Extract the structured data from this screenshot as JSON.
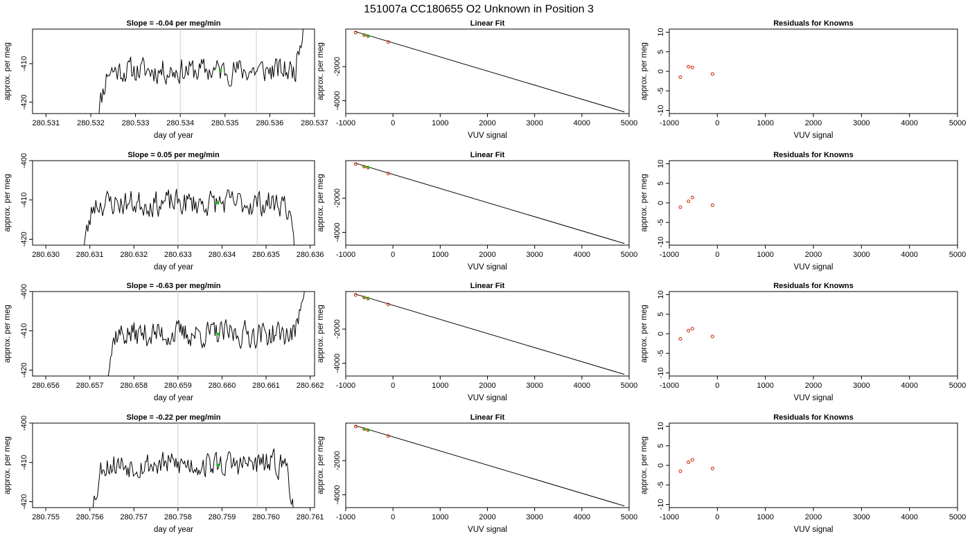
{
  "figure": {
    "title": "151007a     CC180655   O2 Unknown in Position  3",
    "colors": {
      "trace": "#000000",
      "marker": "#00cc00",
      "residual": "#cc2200",
      "vline": "#cccccc"
    }
  },
  "chart_data": [
    {
      "panel": "timeseries",
      "type": "line",
      "title": "Slope =  -0.04  per meg/min",
      "xlabel": "day of year",
      "ylabel": "approx. per meg",
      "xlim": [
        280.5307,
        280.537
      ],
      "ylim": [
        -423,
        -401
      ],
      "xticks": [
        "280.531",
        "280.532",
        "280.533",
        "280.534",
        "280.535",
        "280.536",
        "280.537"
      ],
      "yticks": [
        -420,
        -410
      ],
      "t_start": 280.5321,
      "t_end": 280.5368,
      "level": -411.8,
      "vlines": [
        280.534,
        280.5357
      ],
      "marker": {
        "x": 280.5349,
        "y": -411.7
      },
      "seed": 11
    },
    {
      "panel": "fit",
      "type": "line",
      "title": "Linear Fit",
      "xlabel": "VUV signal",
      "ylabel": "approx. per meg",
      "xlim": [
        -1000,
        5000
      ],
      "ylim": [
        -4750,
        200
      ],
      "xticks": [
        -1000,
        0,
        1000,
        2000,
        3000,
        4000,
        5000
      ],
      "yticks": [
        -2000,
        -4000
      ],
      "line": {
        "x": [
          -800,
          4900
        ],
        "y": [
          56,
          -4654
        ]
      },
      "knowns": {
        "x": [
          -790,
          -610,
          -530,
          -100
        ],
        "y": [
          0,
          -150,
          -210,
          -560
        ]
      },
      "unknown": {
        "x": [
          -600,
          -520
        ],
        "y": [
          -140,
          -200
        ]
      }
    },
    {
      "panel": "residuals",
      "type": "scatter",
      "title": "Residuals for Knowns",
      "xlabel": "VUV signal",
      "ylabel": "approx. per meg",
      "xlim": [
        -1000,
        5000
      ],
      "ylim": [
        -10.8,
        10.8
      ],
      "xticks": [
        -1000,
        0,
        1000,
        2000,
        3000,
        4000,
        5000
      ],
      "yticks": [
        10,
        5,
        0,
        -5,
        -10
      ],
      "points": {
        "x": [
          -770,
          -600,
          -520,
          -100
        ],
        "y": [
          -1.5,
          1.2,
          1.0,
          -0.7
        ]
      }
    },
    {
      "panel": "timeseries",
      "type": "line",
      "title": "Slope =  0.05  per meg/min",
      "xlabel": "day of year",
      "ylabel": "approx. per meg",
      "xlim": [
        280.6297,
        280.6361
      ],
      "ylim": [
        -421.5,
        -400
      ],
      "xticks": [
        "280.630",
        "280.631",
        "280.632",
        "280.633",
        "280.634",
        "280.635",
        "280.636"
      ],
      "yticks": [
        -420,
        -410,
        -400
      ],
      "t_start": 280.6308,
      "t_end": 280.6357,
      "level": -410.8,
      "vlines": [
        280.633,
        280.6348
      ],
      "marker": {
        "x": 280.6339,
        "y": -410.8
      },
      "seed": 23
    },
    {
      "panel": "fit",
      "type": "line",
      "title": "Linear Fit",
      "xlabel": "VUV signal",
      "ylabel": "approx. per meg",
      "xlim": [
        -1000,
        5000
      ],
      "ylim": [
        -4750,
        200
      ],
      "xticks": [
        -1000,
        0,
        1000,
        2000,
        3000,
        4000,
        5000
      ],
      "yticks": [
        -2000,
        -4000
      ],
      "line": {
        "x": [
          -800,
          4900
        ],
        "y": [
          56,
          -4654
        ]
      },
      "knowns": {
        "x": [
          -790,
          -610,
          -530,
          -100
        ],
        "y": [
          0,
          -150,
          -210,
          -560
        ]
      },
      "unknown": {
        "x": [
          -600,
          -520
        ],
        "y": [
          -140,
          -200
        ]
      }
    },
    {
      "panel": "residuals",
      "type": "scatter",
      "title": "Residuals for Knowns",
      "xlabel": "VUV signal",
      "ylabel": "approx. per meg",
      "xlim": [
        -1000,
        5000
      ],
      "ylim": [
        -10.8,
        10.8
      ],
      "xticks": [
        -1000,
        0,
        1000,
        2000,
        3000,
        4000,
        5000
      ],
      "yticks": [
        10,
        5,
        0,
        -5,
        -10
      ],
      "points": {
        "x": [
          -770,
          -600,
          -520,
          -100
        ],
        "y": [
          -1.1,
          0.4,
          1.4,
          -0.6
        ]
      }
    },
    {
      "panel": "timeseries",
      "type": "line",
      "title": "Slope =  -0.63  per meg/min",
      "xlabel": "day of year",
      "ylabel": "approx. per meg",
      "xlim": [
        280.6557,
        280.6621
      ],
      "ylim": [
        -421.5,
        -400
      ],
      "xticks": [
        "280.656",
        "280.657",
        "280.658",
        "280.659",
        "280.660",
        "280.661",
        "280.662"
      ],
      "yticks": [
        -420,
        -410,
        -400
      ],
      "t_start": 280.6573,
      "t_end": 280.6619,
      "level": -410.8,
      "vlines": [
        280.659,
        280.6608
      ],
      "marker": {
        "x": 280.6599,
        "y": -410.8
      },
      "seed": 37
    },
    {
      "panel": "fit",
      "type": "line",
      "title": "Linear Fit",
      "xlabel": "VUV signal",
      "ylabel": "approx. per meg",
      "xlim": [
        -1000,
        5000
      ],
      "ylim": [
        -4750,
        200
      ],
      "xticks": [
        -1000,
        0,
        1000,
        2000,
        3000,
        4000,
        5000
      ],
      "yticks": [
        -2000,
        -4000
      ],
      "line": {
        "x": [
          -800,
          4900
        ],
        "y": [
          56,
          -4654
        ]
      },
      "knowns": {
        "x": [
          -790,
          -610,
          -530,
          -100
        ],
        "y": [
          0,
          -150,
          -210,
          -560
        ]
      },
      "unknown": {
        "x": [
          -600,
          -520
        ],
        "y": [
          -140,
          -200
        ]
      }
    },
    {
      "panel": "residuals",
      "type": "scatter",
      "title": "Residuals for Knowns",
      "xlabel": "VUV signal",
      "ylabel": "approx. per meg",
      "xlim": [
        -1000,
        5000
      ],
      "ylim": [
        -10.8,
        10.8
      ],
      "xticks": [
        -1000,
        0,
        1000,
        2000,
        3000,
        4000,
        5000
      ],
      "yticks": [
        10,
        5,
        0,
        -5,
        -10
      ],
      "points": {
        "x": [
          -770,
          -600,
          -520,
          -100
        ],
        "y": [
          -1.3,
          0.8,
          1.3,
          -0.7
        ]
      }
    },
    {
      "panel": "timeseries",
      "type": "line",
      "title": "Slope =  -0.22  per meg/min",
      "xlabel": "day of year",
      "ylabel": "approx. per meg",
      "xlim": [
        280.7547,
        280.7611
      ],
      "ylim": [
        -421.5,
        -400
      ],
      "xticks": [
        "280.755",
        "280.756",
        "280.757",
        "280.758",
        "280.759",
        "280.760",
        "280.761"
      ],
      "yticks": [
        -420,
        -410,
        -400
      ],
      "t_start": 280.756,
      "t_end": 280.7607,
      "level": -410.5,
      "vlines": [
        280.758,
        280.7598
      ],
      "marker": {
        "x": 280.7589,
        "y": -410.6
      },
      "seed": 53
    },
    {
      "panel": "fit",
      "type": "line",
      "title": "Linear Fit",
      "xlabel": "VUV signal",
      "ylabel": "approx. per meg",
      "xlim": [
        -1000,
        5000
      ],
      "ylim": [
        -4750,
        200
      ],
      "xticks": [
        -1000,
        0,
        1000,
        2000,
        3000,
        4000,
        5000
      ],
      "yticks": [
        -2000,
        -4000
      ],
      "line": {
        "x": [
          -800,
          4900
        ],
        "y": [
          56,
          -4654
        ]
      },
      "knowns": {
        "x": [
          -790,
          -610,
          -530,
          -100
        ],
        "y": [
          0,
          -150,
          -210,
          -560
        ]
      },
      "unknown": {
        "x": [
          -600,
          -520
        ],
        "y": [
          -140,
          -200
        ]
      }
    },
    {
      "panel": "residuals",
      "type": "scatter",
      "title": "Residuals for Knowns",
      "xlabel": "VUV signal",
      "ylabel": "approx. per meg",
      "xlim": [
        -1000,
        5000
      ],
      "ylim": [
        -10.8,
        10.8
      ],
      "xticks": [
        -1000,
        0,
        1000,
        2000,
        3000,
        4000,
        5000
      ],
      "yticks": [
        10,
        5,
        0,
        -5,
        -10
      ],
      "points": {
        "x": [
          -770,
          -600,
          -520,
          -100
        ],
        "y": [
          -1.5,
          0.8,
          1.4,
          -0.8
        ]
      }
    }
  ]
}
